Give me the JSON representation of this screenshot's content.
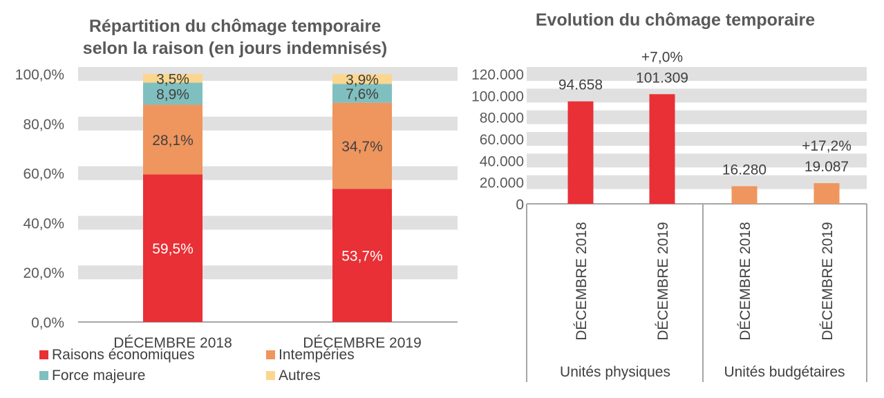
{
  "chart_data": [
    {
      "type": "bar",
      "stacked": true,
      "title": [
        "Répartition du chômage temporaire",
        "selon la raison (en jours indemnisés)"
      ],
      "categories": [
        "DÉCEMBRE 2018",
        "DÉCEMBRE 2019"
      ],
      "series": [
        {
          "name": "Raisons économiques",
          "values": [
            59.5,
            53.7
          ],
          "labels": [
            "59,5%",
            "53,7%"
          ],
          "color": "#E83036"
        },
        {
          "name": "Intempéries",
          "values": [
            28.1,
            34.7
          ],
          "labels": [
            "28,1%",
            "34,7%"
          ],
          "color": "#EF955E"
        },
        {
          "name": "Force majeure",
          "values": [
            8.9,
            7.6
          ],
          "labels": [
            "8,9%",
            "7,6%"
          ],
          "color": "#80BFBF"
        },
        {
          "name": "Autres",
          "values": [
            3.5,
            3.9
          ],
          "labels": [
            "3,5%",
            "3,9%"
          ],
          "color": "#FBD68E"
        }
      ],
      "ylim": [
        0,
        100
      ],
      "yticks": [
        "0,0%",
        "20,0%",
        "40,0%",
        "60,0%",
        "80,0%",
        "100,0%"
      ],
      "grid": true,
      "legend": "bottom"
    },
    {
      "type": "bar",
      "title": "Evolution du chômage temporaire",
      "groups": [
        "Unités physiques",
        "Unités budgétaires"
      ],
      "categories": [
        "DÉCEMBRE 2018",
        "DÉCEMBRE 2019",
        "DÉCEMBRE 2018",
        "DÉCEMBRE 2019"
      ],
      "values": [
        94658,
        101309,
        16280,
        19087
      ],
      "value_labels": [
        "94.658",
        "101.309",
        "16.280",
        "19.087"
      ],
      "change_labels": [
        "",
        "+7,0%",
        "",
        "+17,2%"
      ],
      "colors": [
        "#E83036",
        "#E83036",
        "#EF955E",
        "#EF955E"
      ],
      "ylim": [
        0,
        120000
      ],
      "yticks": [
        "0",
        "20.000",
        "40.000",
        "60.000",
        "80.000",
        "100.000",
        "120.000"
      ],
      "grid": true
    }
  ]
}
